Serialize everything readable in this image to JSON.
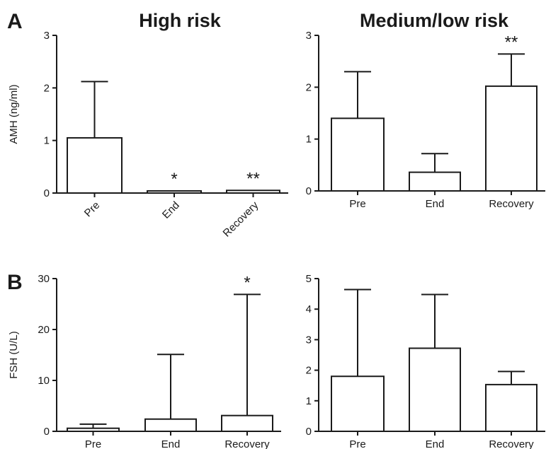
{
  "panel_labels": {
    "a": "A",
    "b": "B"
  },
  "titles": {
    "left": "High risk",
    "right": "Medium/low risk"
  },
  "colors": {
    "axis": "#1a1a1a",
    "bar_fill": "#ffffff",
    "bar_stroke": "#1a1a1a"
  },
  "chart_data": [
    {
      "type": "bar",
      "title": "High risk",
      "ylabel": "AMH (ng/ml)",
      "categories": [
        "Pre",
        "End",
        "Recovery"
      ],
      "values": [
        1.05,
        0.04,
        0.05
      ],
      "error_upper": [
        2.12,
        0.04,
        0.05
      ],
      "significance": [
        "",
        "*",
        "**"
      ],
      "ylim": [
        0,
        3
      ],
      "yticks": [
        "0",
        "1",
        "2",
        "3"
      ],
      "rotated_labels": true
    },
    {
      "type": "bar",
      "title": "Medium/low risk",
      "ylabel": "",
      "categories": [
        "Pre",
        "End",
        "Recovery"
      ],
      "values": [
        1.4,
        0.36,
        2.02
      ],
      "error_upper": [
        2.3,
        0.72,
        2.64
      ],
      "significance": [
        "",
        "",
        "**"
      ],
      "ylim": [
        0,
        3
      ],
      "yticks": [
        "0",
        "1",
        "2",
        "3"
      ],
      "rotated_labels": false
    },
    {
      "type": "bar",
      "title": "",
      "ylabel": "FSH (U/L)",
      "categories": [
        "Pre",
        "End",
        "Recovery"
      ],
      "values": [
        0.6,
        2.4,
        3.1
      ],
      "error_upper": [
        1.4,
        15.1,
        26.9
      ],
      "significance": [
        "",
        "",
        "*"
      ],
      "ylim": [
        0,
        30
      ],
      "yticks": [
        "0",
        "10",
        "20",
        "30"
      ],
      "rotated_labels": false
    },
    {
      "type": "bar",
      "title": "",
      "ylabel": "",
      "categories": [
        "Pre",
        "End",
        "Recovery"
      ],
      "values": [
        1.8,
        2.72,
        1.53
      ],
      "error_upper": [
        4.64,
        4.48,
        1.96
      ],
      "significance": [
        "",
        "",
        ""
      ],
      "ylim": [
        0,
        5
      ],
      "yticks": [
        "0",
        "1",
        "2",
        "3",
        "4",
        "5"
      ],
      "rotated_labels": false
    }
  ]
}
